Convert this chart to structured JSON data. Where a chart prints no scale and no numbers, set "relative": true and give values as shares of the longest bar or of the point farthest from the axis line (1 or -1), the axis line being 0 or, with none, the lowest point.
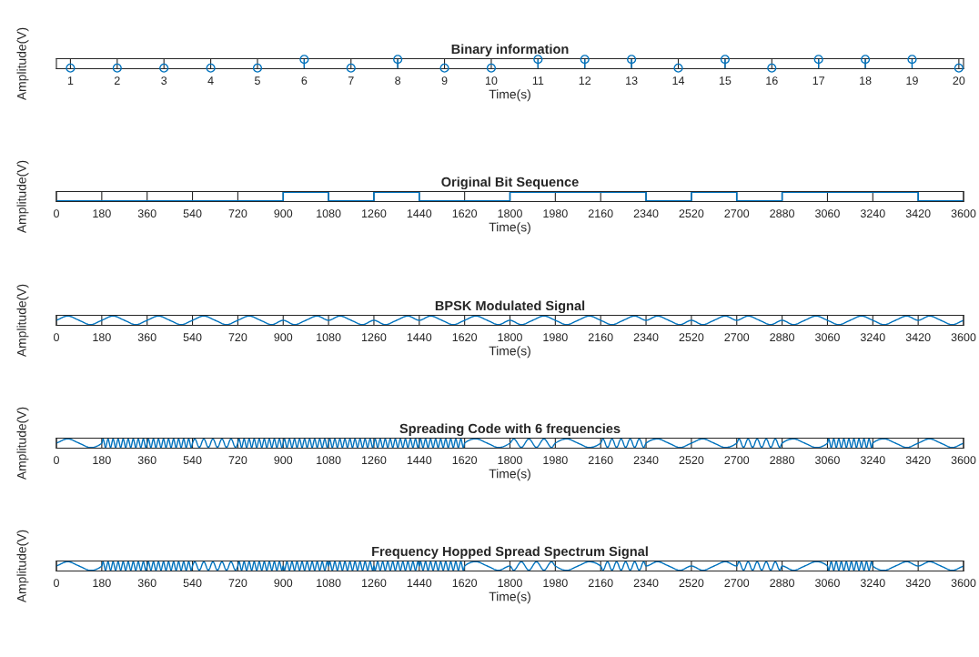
{
  "chart_data": [
    {
      "type": "lollipop",
      "title": "Binary information",
      "xlabel": "Time(s)",
      "ylabel": "Amplitude(V)",
      "relative": true,
      "tick_labels": "x",
      "marker": "circle",
      "x": [
        1,
        2,
        3,
        4,
        5,
        6,
        7,
        8,
        9,
        10,
        11,
        12,
        13,
        14,
        15,
        16,
        17,
        18,
        19,
        20
      ],
      "xlim": [
        0.7,
        20.1
      ],
      "xticks": [
        1,
        2,
        3,
        4,
        5,
        6,
        7,
        8,
        9,
        10,
        11,
        12,
        13,
        14,
        15,
        16,
        17,
        18,
        19,
        20
      ],
      "series": [
        {
          "color": "#0072bd",
          "values": [
            0,
            0,
            0,
            0,
            0,
            1,
            0,
            1,
            0,
            0,
            1,
            1,
            1,
            0,
            1,
            0,
            1,
            1,
            1,
            0
          ]
        }
      ]
    },
    {
      "type": "step",
      "title": "Original Bit Sequence",
      "xlabel": "Time(s)",
      "ylabel": "Amplitude(V)",
      "relative": true,
      "tick_labels": "x",
      "x": [
        0,
        180,
        360,
        540,
        720,
        900,
        1080,
        1260,
        1440,
        1620,
        1800,
        1980,
        2160,
        2340,
        2520,
        2700,
        2880,
        3060,
        3240,
        3420,
        3600
      ],
      "xlim": [
        0,
        3600
      ],
      "xticks": [
        0,
        180,
        360,
        540,
        720,
        900,
        1080,
        1260,
        1440,
        1620,
        1800,
        1980,
        2160,
        2340,
        2520,
        2700,
        2880,
        3060,
        3240,
        3420,
        3600
      ],
      "series": [
        {
          "color": "#0072bd",
          "values": [
            0,
            0,
            0,
            0,
            0,
            1,
            0,
            1,
            0,
            0,
            1,
            1,
            1,
            0,
            1,
            0,
            1,
            1,
            1,
            0,
            0
          ]
        }
      ]
    },
    {
      "type": "line",
      "title": "BPSK Modulated Signal",
      "xlabel": "Time(s)",
      "ylabel": "Amplitude(V)",
      "relative": true,
      "tick_labels": "x",
      "x": [
        0,
        45,
        90,
        135,
        180,
        225,
        270,
        315,
        360,
        405,
        450,
        495,
        540,
        585,
        630,
        675,
        720,
        765,
        810,
        855,
        900,
        945,
        990,
        1035,
        1080,
        1125,
        1170,
        1215,
        1260,
        1305,
        1350,
        1395,
        1440,
        1485,
        1530,
        1575,
        1620,
        1665,
        1710,
        1755,
        1800,
        1845,
        1890,
        1935,
        1980,
        2025,
        2070,
        2115,
        2160,
        2205,
        2250,
        2295,
        2340,
        2385,
        2430,
        2475,
        2520,
        2565,
        2610,
        2655,
        2700,
        2745,
        2790,
        2835,
        2880,
        2925,
        2970,
        3015,
        3060,
        3105,
        3150,
        3195,
        3240,
        3285,
        3330,
        3375,
        3420,
        3465,
        3510,
        3555,
        3600
      ],
      "xlim": [
        0,
        3600
      ],
      "xticks": [
        0,
        180,
        360,
        540,
        720,
        900,
        1080,
        1260,
        1440,
        1620,
        1800,
        1980,
        2160,
        2340,
        2520,
        2700,
        2880,
        3060,
        3240,
        3420,
        3600
      ],
      "series": [
        {
          "color": "#0072bd",
          "values": [
            0.5,
            1,
            0.5,
            0,
            0.5,
            1,
            0.5,
            0,
            0.5,
            1,
            0.5,
            0,
            0.5,
            1,
            0.5,
            0,
            0.5,
            1,
            0.5,
            0,
            0.5,
            0,
            0.5,
            1,
            0.5,
            1,
            0.5,
            0,
            0.5,
            0,
            0.5,
            1,
            0.5,
            1,
            0.5,
            0,
            0.5,
            1,
            0.5,
            0,
            0.5,
            0,
            0.5,
            1,
            0.5,
            0,
            0.5,
            1,
            0.5,
            0,
            0.5,
            1,
            0.5,
            1,
            0.5,
            0,
            0.5,
            0,
            0.5,
            1,
            0.5,
            1,
            0.5,
            0,
            0.5,
            0,
            0.5,
            1,
            0.5,
            0,
            0.5,
            1,
            0.5,
            0,
            0.5,
            1,
            0.5,
            1,
            0.5,
            0,
            0.5
          ]
        }
      ]
    },
    {
      "type": "line",
      "title": "Spreading Code with 6 frequencies",
      "xlabel": "Time(s)",
      "ylabel": "Amplitude(V)",
      "relative": true,
      "tick_labels": "x",
      "x": [
        0,
        45,
        90,
        135,
        180,
        185,
        195,
        205,
        215,
        225,
        235,
        245,
        255,
        265,
        275,
        285,
        295,
        305,
        315,
        325,
        335,
        345,
        355,
        360,
        365,
        375,
        385,
        395,
        405,
        415,
        425,
        435,
        445,
        455,
        465,
        475,
        485,
        495,
        505,
        515,
        525,
        535,
        540,
        549,
        567,
        585,
        603,
        621,
        639,
        657,
        675,
        693,
        711,
        720,
        725,
        735,
        745,
        755,
        765,
        775,
        785,
        795,
        805,
        815,
        825,
        835,
        845,
        855,
        865,
        875,
        885,
        895,
        900,
        905,
        915,
        925,
        935,
        945,
        955,
        965,
        975,
        985,
        995,
        1005,
        1015,
        1025,
        1035,
        1045,
        1055,
        1065,
        1075,
        1080,
        1085,
        1095,
        1105,
        1115,
        1125,
        1135,
        1145,
        1155,
        1165,
        1175,
        1185,
        1195,
        1205,
        1215,
        1225,
        1235,
        1245,
        1255,
        1260,
        1265,
        1275,
        1285,
        1295,
        1305,
        1315,
        1325,
        1335,
        1345,
        1355,
        1365,
        1375,
        1385,
        1395,
        1405,
        1415,
        1425,
        1435,
        1440,
        1445,
        1455,
        1465,
        1475,
        1485,
        1495,
        1505,
        1515,
        1525,
        1535,
        1545,
        1555,
        1565,
        1575,
        1585,
        1595,
        1605,
        1615,
        1620,
        1665,
        1710,
        1755,
        1800,
        1815,
        1845,
        1875,
        1905,
        1935,
        1965,
        1980,
        2025,
        2070,
        2115,
        2160,
        2169,
        2187,
        2205,
        2223,
        2241,
        2259,
        2277,
        2295,
        2313,
        2331,
        2340,
        2385,
        2430,
        2475,
        2520,
        2565,
        2610,
        2655,
        2700,
        2709,
        2727,
        2745,
        2763,
        2781,
        2799,
        2817,
        2835,
        2853,
        2871,
        2880,
        2925,
        2970,
        3015,
        3060,
        3065,
        3075,
        3085,
        3095,
        3105,
        3115,
        3125,
        3135,
        3145,
        3155,
        3165,
        3175,
        3185,
        3195,
        3205,
        3215,
        3225,
        3235,
        3240,
        3285,
        3330,
        3375,
        3420,
        3465,
        3510,
        3555,
        3600
      ],
      "xlim": [
        0,
        3600
      ],
      "xticks": [
        0,
        180,
        360,
        540,
        720,
        900,
        1080,
        1260,
        1440,
        1620,
        1800,
        1980,
        2160,
        2340,
        2520,
        2700,
        2880,
        3060,
        3240,
        3420,
        3600
      ],
      "series": [
        {
          "color": "#0072bd",
          "values": [
            0.5,
            1,
            0.5,
            0,
            0.5,
            1,
            0,
            1,
            0,
            1,
            0,
            1,
            0,
            1,
            0,
            1,
            0,
            1,
            0,
            1,
            0,
            1,
            0,
            0.5,
            1,
            0,
            1,
            0,
            1,
            0,
            1,
            0,
            1,
            0,
            1,
            0,
            1,
            0,
            1,
            0,
            1,
            0,
            0.5,
            1,
            0,
            1,
            0,
            1,
            0,
            1,
            0,
            1,
            0,
            0.5,
            1,
            0,
            1,
            0,
            1,
            0,
            1,
            0,
            1,
            0,
            1,
            0,
            1,
            0,
            1,
            0,
            1,
            0,
            0.5,
            1,
            0,
            1,
            0,
            1,
            0,
            1,
            0,
            1,
            0,
            1,
            0,
            1,
            0,
            1,
            0,
            1,
            0,
            0.5,
            1,
            0,
            1,
            0,
            1,
            0,
            1,
            0,
            1,
            0,
            1,
            0,
            1,
            0,
            1,
            0,
            1,
            0,
            0.5,
            1,
            0,
            1,
            0,
            1,
            0,
            1,
            0,
            1,
            0,
            1,
            0,
            1,
            0,
            1,
            0,
            1,
            0,
            0.5,
            1,
            0,
            1,
            0,
            1,
            0,
            1,
            0,
            1,
            0,
            1,
            0,
            1,
            0,
            1,
            0,
            1,
            0,
            0.5,
            1,
            0.5,
            0,
            0.5,
            1,
            0,
            1,
            0,
            1,
            0,
            0.5,
            1,
            0.5,
            0,
            0.5,
            1,
            0,
            1,
            0,
            1,
            0,
            1,
            0,
            1,
            0,
            0.5,
            1,
            0.5,
            0,
            0.5,
            1,
            0.5,
            0,
            0.5,
            1,
            0,
            1,
            0,
            1,
            0,
            1,
            0,
            1,
            0,
            0.5,
            1,
            0.5,
            0,
            0.5,
            1,
            0,
            1,
            0,
            1,
            0,
            1,
            0,
            1,
            0,
            1,
            0,
            1,
            0,
            1,
            0,
            1,
            0,
            0.5,
            1,
            0.5,
            0,
            0.5,
            1,
            0.5,
            0,
            0.5
          ]
        }
      ]
    },
    {
      "type": "line",
      "title": "Frequency Hopped Spread Spectrum Signal",
      "xlabel": "Time(s)",
      "ylabel": "Amplitude(V)",
      "relative": true,
      "tick_labels": "x",
      "x": [
        0,
        45,
        90,
        135,
        180,
        185,
        195,
        205,
        215,
        225,
        235,
        245,
        255,
        265,
        275,
        285,
        295,
        305,
        315,
        325,
        335,
        345,
        355,
        360,
        365,
        375,
        385,
        395,
        405,
        415,
        425,
        435,
        445,
        455,
        465,
        475,
        485,
        495,
        505,
        515,
        525,
        535,
        540,
        549,
        567,
        585,
        603,
        621,
        639,
        657,
        675,
        693,
        711,
        720,
        725,
        735,
        745,
        755,
        765,
        775,
        785,
        795,
        805,
        815,
        825,
        835,
        845,
        855,
        865,
        875,
        885,
        895,
        900,
        905,
        915,
        925,
        935,
        945,
        955,
        965,
        975,
        985,
        995,
        1005,
        1015,
        1025,
        1035,
        1045,
        1055,
        1065,
        1075,
        1080,
        1085,
        1095,
        1105,
        1115,
        1125,
        1135,
        1145,
        1155,
        1165,
        1175,
        1185,
        1195,
        1205,
        1215,
        1225,
        1235,
        1245,
        1255,
        1260,
        1265,
        1275,
        1285,
        1295,
        1305,
        1315,
        1325,
        1335,
        1345,
        1355,
        1365,
        1375,
        1385,
        1395,
        1405,
        1415,
        1425,
        1435,
        1440,
        1445,
        1455,
        1465,
        1475,
        1485,
        1495,
        1505,
        1515,
        1525,
        1535,
        1545,
        1555,
        1565,
        1575,
        1585,
        1595,
        1605,
        1615,
        1620,
        1665,
        1710,
        1755,
        1800,
        1815,
        1845,
        1875,
        1905,
        1935,
        1965,
        1980,
        2025,
        2070,
        2115,
        2160,
        2169,
        2187,
        2205,
        2223,
        2241,
        2259,
        2277,
        2295,
        2313,
        2331,
        2340,
        2385,
        2430,
        2475,
        2520,
        2565,
        2610,
        2655,
        2700,
        2709,
        2727,
        2745,
        2763,
        2781,
        2799,
        2817,
        2835,
        2853,
        2871,
        2880,
        2925,
        2970,
        3015,
        3060,
        3065,
        3075,
        3085,
        3095,
        3105,
        3115,
        3125,
        3135,
        3145,
        3155,
        3165,
        3175,
        3185,
        3195,
        3205,
        3215,
        3225,
        3235,
        3240,
        3285,
        3330,
        3375,
        3420,
        3465,
        3510,
        3555,
        3600
      ],
      "xlim": [
        0,
        3600
      ],
      "xticks": [
        0,
        180,
        360,
        540,
        720,
        900,
        1080,
        1260,
        1440,
        1620,
        1800,
        1980,
        2160,
        2340,
        2520,
        2700,
        2880,
        3060,
        3240,
        3420,
        3600
      ],
      "series": [
        {
          "color": "#0072bd",
          "values": [
            0.5,
            1,
            0.5,
            0,
            0.5,
            1,
            0,
            1,
            0,
            1,
            0,
            1,
            0,
            1,
            0,
            1,
            0,
            1,
            0,
            1,
            0,
            1,
            0,
            0.5,
            1,
            0,
            1,
            0,
            1,
            0,
            1,
            0,
            1,
            0,
            1,
            0,
            1,
            0,
            1,
            0,
            1,
            0,
            0.5,
            1,
            0,
            1,
            0,
            1,
            0,
            1,
            0,
            1,
            0,
            0.5,
            1,
            0,
            1,
            0,
            1,
            0,
            1,
            0,
            1,
            0,
            1,
            0,
            1,
            0,
            1,
            0,
            1,
            0,
            0.5,
            0,
            1,
            0,
            1,
            0,
            1,
            0,
            1,
            0,
            1,
            0,
            1,
            0,
            1,
            0,
            1,
            0,
            1,
            0.5,
            1,
            0,
            1,
            0,
            1,
            0,
            1,
            0,
            1,
            0,
            1,
            0,
            1,
            0,
            1,
            0,
            1,
            0,
            0.5,
            0,
            1,
            0,
            1,
            0,
            1,
            0,
            1,
            0,
            1,
            0,
            1,
            0,
            1,
            0,
            1,
            0,
            1,
            0.5,
            1,
            0,
            1,
            0,
            1,
            0,
            1,
            0,
            1,
            0,
            1,
            0,
            1,
            0,
            1,
            0,
            1,
            0,
            0.5,
            1,
            0.5,
            0,
            0.5,
            0,
            1,
            0,
            1,
            0,
            1,
            0.5,
            0,
            0.5,
            1,
            0.5,
            0,
            1,
            0,
            1,
            0,
            1,
            0,
            1,
            0,
            1,
            0.5,
            1,
            0.5,
            0,
            0.5,
            0,
            0.5,
            1,
            0.5,
            1,
            0,
            1,
            0,
            1,
            0,
            1,
            0,
            1,
            0,
            0.5,
            0,
            0.5,
            1,
            0.5,
            0,
            1,
            0,
            1,
            0,
            1,
            0,
            1,
            0,
            1,
            0,
            1,
            0,
            1,
            0,
            1,
            0,
            1,
            0.5,
            0,
            0.5,
            1,
            0.5,
            1,
            0.5,
            0,
            0.5
          ]
        }
      ]
    }
  ]
}
